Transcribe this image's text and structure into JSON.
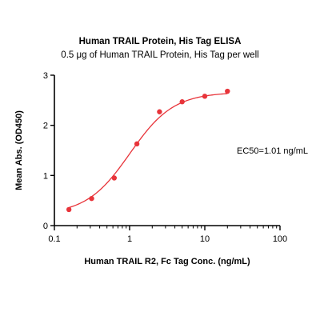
{
  "chart_data": {
    "type": "scatter",
    "title": "Human TRAIL Protein, His Tag ELISA",
    "subtitle": "0.5 μg of Human TRAIL Protein, His Tag per well",
    "xlabel": "Human TRAIL R2, Fc Tag Conc. (ng/mL)",
    "ylabel": "Mean Abs. (OD450)",
    "xscale": "log",
    "xlim": [
      0.1,
      100
    ],
    "ylim": [
      0,
      3
    ],
    "x_ticks": [
      {
        "value": 0.1,
        "label": "0.1"
      },
      {
        "value": 1,
        "label": "1"
      },
      {
        "value": 10,
        "label": "10"
      },
      {
        "value": 100,
        "label": "100"
      }
    ],
    "y_ticks": [
      {
        "value": 0,
        "label": "0"
      },
      {
        "value": 1,
        "label": "1"
      },
      {
        "value": 2,
        "label": "2"
      },
      {
        "value": 3,
        "label": "3"
      }
    ],
    "grid": false,
    "series": [
      {
        "color": "#e8343a",
        "x": [
          0.156,
          0.3125,
          0.625,
          1.25,
          2.5,
          5,
          10,
          20
        ],
        "y": [
          0.32,
          0.54,
          0.95,
          1.63,
          2.27,
          2.47,
          2.58,
          2.68
        ],
        "fit": {
          "model": "4PL",
          "bottom": 0.22,
          "top": 2.66,
          "ec50": 1.01,
          "hill": 1.5
        }
      }
    ],
    "annotations": [
      {
        "text": "EC50=1.01 ng/mL",
        "x": 15,
        "y": 1.5
      }
    ]
  }
}
